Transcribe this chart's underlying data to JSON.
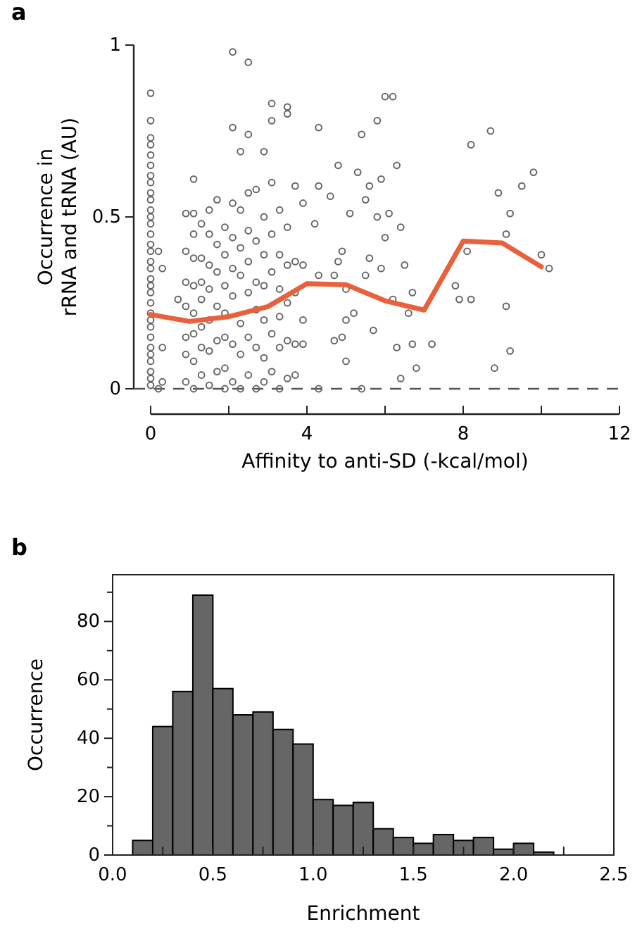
{
  "chart_data": [
    {
      "type": "scatter",
      "title": "a",
      "xlabel": "Affinity to anti-SD (-kcal/mol)",
      "ylabel": "Occurrence in\nrRNA and tRNA (AU)",
      "xlim": [
        0,
        12
      ],
      "xticks": [
        0,
        {
          "value": 2,
          "label": null
        },
        4,
        {
          "value": 6,
          "label": null
        },
        8,
        {
          "value": 10,
          "label": null
        },
        12
      ],
      "ylim": [
        0,
        1
      ],
      "yticks": [
        0,
        0.5,
        1
      ],
      "marker": "circle",
      "grid": false,
      "ref_lines": [
        {
          "axis": "y",
          "value": 0,
          "line_style": "dashed",
          "color": "#555555"
        }
      ],
      "series": [
        {
          "type": "scatter",
          "color": "#666666",
          "x": [
            0,
            0,
            0,
            0,
            0,
            0,
            0,
            0,
            0,
            0,
            0,
            0,
            0,
            0,
            0,
            0,
            0,
            0,
            0,
            0,
            0,
            0,
            0,
            0,
            0,
            0,
            0,
            0,
            0,
            0,
            0,
            0,
            0.2,
            0.3,
            0.2,
            0.3,
            0.3,
            0.7,
            0.9,
            0.9,
            0.9,
            0.9,
            0.9,
            0.9,
            0.9,
            1.1,
            1.1,
            1.1,
            1.1,
            1.1,
            1.1,
            1.1,
            1.1,
            1.1,
            1.3,
            1.3,
            1.3,
            1.3,
            1.3,
            1.3,
            1.3,
            1.5,
            1.5,
            1.5,
            1.5,
            1.5,
            1.5,
            1.5,
            1.7,
            1.7,
            1.7,
            1.7,
            1.7,
            1.7,
            1.9,
            1.9,
            1.9,
            1.9,
            1.9,
            1.9,
            1.9,
            2.1,
            2.1,
            2.1,
            2.1,
            2.1,
            2.1,
            2.1,
            2.1,
            2.3,
            2.3,
            2.3,
            2.3,
            2.3,
            2.3,
            2.3,
            2.5,
            2.5,
            2.5,
            2.5,
            2.5,
            2.5,
            2.5,
            2.5,
            2.7,
            2.7,
            2.7,
            2.7,
            2.7,
            2.7,
            2.9,
            2.9,
            2.9,
            2.9,
            2.9,
            2.9,
            2.9,
            3.1,
            3.1,
            3.1,
            3.1,
            3.1,
            3.1,
            3.1,
            3.3,
            3.3,
            3.3,
            3.3,
            3.3,
            3.3,
            3.5,
            3.5,
            3.5,
            3.5,
            3.5,
            3.5,
            3.5,
            3.7,
            3.7,
            3.7,
            3.7,
            3.7,
            3.9,
            3.9,
            3.9,
            3.9,
            4.2,
            4.3,
            4.3,
            4.3,
            4.3,
            4.6,
            4.7,
            4.7,
            4.8,
            4.8,
            4.9,
            4.9,
            5.0,
            5.0,
            5.0,
            5.1,
            5.2,
            5.3,
            5.4,
            5.4,
            5.5,
            5.5,
            5.6,
            5.6,
            5.7,
            5.8,
            5.8,
            5.9,
            5.9,
            6.0,
            6.0,
            6.1,
            6.2,
            6.2,
            6.3,
            6.3,
            6.4,
            6.4,
            6.5,
            6.6,
            6.7,
            6.7,
            6.8,
            7.2,
            7.8,
            7.9,
            8.1,
            8.2,
            8.2,
            8.7,
            8.8,
            8.9,
            9.1,
            9.1,
            9.2,
            9.2,
            9.5,
            9.8,
            10.0,
            10.2
          ],
          "values": [
            0.86,
            0.78,
            0.73,
            0.71,
            0.68,
            0.65,
            0.62,
            0.6,
            0.57,
            0.55,
            0.52,
            0.5,
            0.48,
            0.45,
            0.42,
            0.4,
            0.37,
            0.35,
            0.32,
            0.3,
            0.28,
            0.25,
            0.22,
            0.2,
            0.18,
            0.15,
            0.12,
            0.1,
            0.08,
            0.05,
            0.03,
            0.01,
            0.4,
            0.35,
            0,
            0.12,
            0.02,
            0.26,
            0.51,
            0.4,
            0.31,
            0.24,
            0.15,
            0.1,
            0.02,
            0.61,
            0.51,
            0.45,
            0.38,
            0.3,
            0.22,
            0.16,
            0.08,
            0,
            0.48,
            0.38,
            0.31,
            0.26,
            0.18,
            0.12,
            0.04,
            0.52,
            0.45,
            0.36,
            0.29,
            0.2,
            0.11,
            0.01,
            0.55,
            0.42,
            0.34,
            0.24,
            0.14,
            0.05,
            0.47,
            0.39,
            0.3,
            0.22,
            0.15,
            0.06,
            0,
            0.98,
            0.76,
            0.54,
            0.44,
            0.35,
            0.27,
            0.13,
            0.02,
            0.69,
            0.52,
            0.41,
            0.33,
            0.19,
            0.1,
            0,
            0.95,
            0.74,
            0.57,
            0.46,
            0.37,
            0.28,
            0.15,
            0.04,
            0.58,
            0.43,
            0.31,
            0.23,
            0.12,
            0,
            0.69,
            0.5,
            0.39,
            0.3,
            0.2,
            0.09,
            0.02,
            0.83,
            0.78,
            0.6,
            0.45,
            0.34,
            0.16,
            0.05,
            0.52,
            0.39,
            0.29,
            0.21,
            0.12,
            0,
            0.82,
            0.8,
            0.47,
            0.36,
            0.25,
            0.14,
            0.03,
            0.59,
            0.37,
            0.28,
            0.13,
            0.04,
            0.54,
            0.36,
            0.2,
            0.13,
            0.48,
            0.76,
            0.59,
            0.33,
            0,
            0.56,
            0.33,
            0.14,
            0.65,
            0.37,
            0.4,
            0.15,
            0.29,
            0.2,
            0.08,
            0.51,
            0.22,
            0.63,
            0.74,
            0,
            0.55,
            0.33,
            0.59,
            0.38,
            0.17,
            0.78,
            0.5,
            0.61,
            0.35,
            0.85,
            0.44,
            0.51,
            0.85,
            0.26,
            0.65,
            0.12,
            0.47,
            0.03,
            0.36,
            0.22,
            0.28,
            0.13,
            0.06,
            0.13,
            0.3,
            0.26,
            0.4,
            0.71,
            0.26,
            0.75,
            0.06,
            0.57,
            0.24,
            0.45,
            0.51,
            0.11,
            0.59,
            0.63,
            0.39,
            0.35
          ]
        },
        {
          "type": "line",
          "color": "#e8603c",
          "marker": "none",
          "x": [
            0,
            1,
            2,
            3,
            4,
            5,
            6,
            7,
            8,
            9,
            10
          ],
          "values": [
            0.216,
            0.196,
            0.21,
            0.239,
            0.306,
            0.303,
            0.256,
            0.229,
            0.43,
            0.424,
            0.355
          ]
        }
      ]
    },
    {
      "type": "histogram",
      "title": "b",
      "xlabel": "Enrichment",
      "ylabel": "Occurrence",
      "color": "#666666",
      "bins": [
        0.1,
        0.2,
        0.3,
        0.4,
        0.5,
        0.6,
        0.7,
        0.8,
        0.9,
        1.0,
        1.1,
        1.2,
        1.3,
        1.4,
        1.5,
        1.6,
        1.7,
        1.8,
        1.9,
        2.0,
        2.1,
        2.2
      ],
      "values": [
        5,
        44,
        56,
        89,
        57,
        48,
        49,
        43,
        38,
        19,
        17,
        18,
        9,
        6,
        4,
        7,
        5,
        6,
        2,
        4,
        1
      ],
      "xlim": [
        0,
        2.5
      ],
      "xticks": [
        {
          "value": 0,
          "label": "0.0"
        },
        {
          "value": 0.25,
          "label": null
        },
        {
          "value": 0.5,
          "label": "0.5"
        },
        {
          "value": 0.75,
          "label": null
        },
        {
          "value": 1,
          "label": "1.0"
        },
        {
          "value": 1.25,
          "label": null
        },
        {
          "value": 1.5,
          "label": "1.5"
        },
        {
          "value": 1.75,
          "label": null
        },
        {
          "value": 2,
          "label": "2.0"
        },
        {
          "value": 2.25,
          "label": null
        },
        {
          "value": 2.5,
          "label": "2.5"
        }
      ],
      "ylim": [
        0,
        96
      ],
      "yticks": [
        0,
        {
          "value": 10,
          "label": null
        },
        20,
        {
          "value": 30,
          "label": null
        },
        40,
        {
          "value": 50,
          "label": null
        },
        60,
        {
          "value": 70,
          "label": null
        },
        80,
        {
          "value": 90,
          "label": null
        }
      ],
      "grid": false
    }
  ]
}
